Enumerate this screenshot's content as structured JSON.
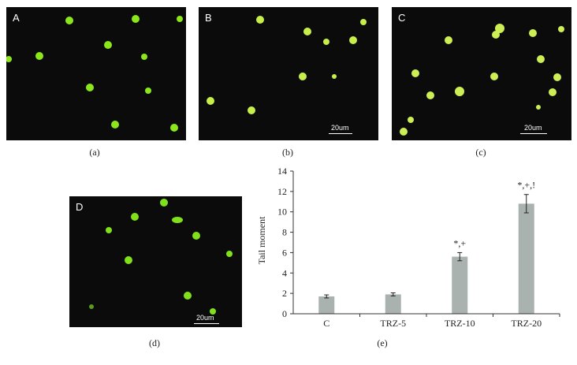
{
  "panels": {
    "a": {
      "label": "A",
      "caption": "(a)"
    },
    "b": {
      "label": "B",
      "caption": "(b)",
      "scale": "20um"
    },
    "c": {
      "label": "C",
      "caption": "(c)",
      "scale": "20um"
    },
    "d": {
      "label": "D",
      "caption": "(d)",
      "scale": "20um"
    },
    "e": {
      "caption": "(e)"
    }
  },
  "chart_data": {
    "type": "bar",
    "categories": [
      "C",
      "TRZ-5",
      "TRZ-10",
      "TRZ-20"
    ],
    "values": [
      1.7,
      1.9,
      5.6,
      10.8
    ],
    "errors": [
      0.15,
      0.15,
      0.4,
      0.9
    ],
    "annotations": [
      "",
      "",
      "*,+",
      "*,+,!"
    ],
    "ylabel": "Tail moment",
    "ylim": [
      0,
      14
    ],
    "yticks": [
      0,
      2,
      4,
      6,
      8,
      10,
      12,
      14
    ],
    "bar_color": "#a9b2ae",
    "grid": false
  }
}
